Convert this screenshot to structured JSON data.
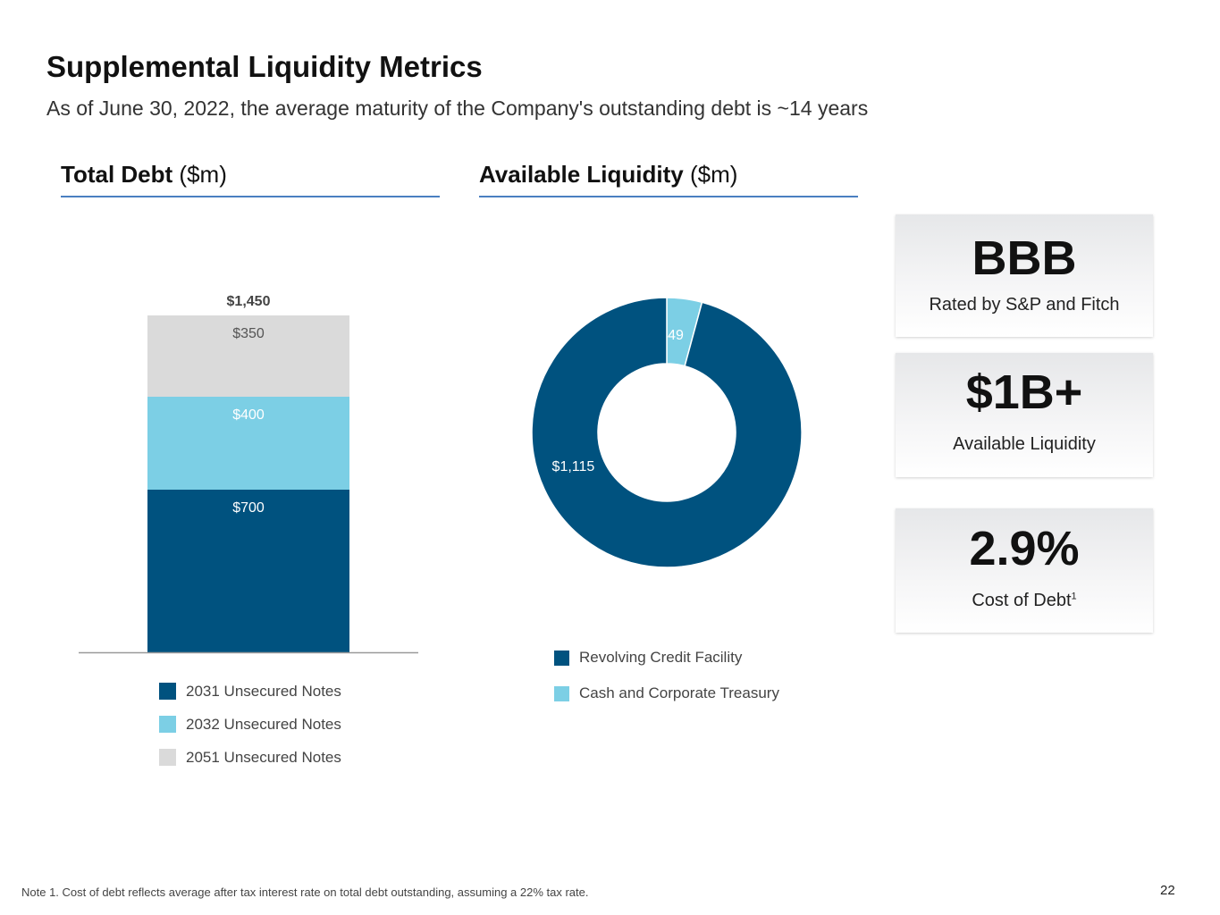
{
  "title": "Supplemental Liquidity Metrics",
  "subtitle": "As of June 30, 2022, the average maturity of the Company's outstanding debt is ~14 years",
  "sections": {
    "total_debt": {
      "heading_bold": "Total Debt",
      "heading_unit": "($m)"
    },
    "available_liquidity": {
      "heading_bold": "Available Liquidity",
      "heading_unit": "($m)"
    }
  },
  "colors": {
    "dark_blue": "#00527f",
    "light_blue": "#7ccfe5",
    "light_gray": "#dadada",
    "rule_blue": "#4a7fc1"
  },
  "chart_data": [
    {
      "type": "bar",
      "stacked": true,
      "title": "Total Debt ($m)",
      "categories": [
        "Total Debt"
      ],
      "total_label": "$1,450",
      "ylim": [
        0,
        1450
      ],
      "series": [
        {
          "name": "2031 Unsecured Notes",
          "values": [
            700
          ],
          "label": "$700",
          "color": "#00527f"
        },
        {
          "name": "2032 Unsecured Notes",
          "values": [
            400
          ],
          "label": "$400",
          "color": "#7ccfe5"
        },
        {
          "name": "2051 Unsecured Notes",
          "values": [
            350
          ],
          "label": "$350",
          "color": "#dadada"
        }
      ]
    },
    {
      "type": "pie",
      "donut": true,
      "title": "Available Liquidity ($m)",
      "slices": [
        {
          "name": "Cash and Corporate Treasury",
          "value": 49,
          "label": "$49",
          "color": "#7ccfe5"
        },
        {
          "name": "Revolving Credit Facility",
          "value": 1115,
          "label": "$1,115",
          "color": "#00527f"
        }
      ],
      "legend": [
        "Revolving Credit Facility",
        "Cash and Corporate Treasury"
      ]
    }
  ],
  "cards": [
    {
      "value": "BBB",
      "label": "Rated by S&P and Fitch"
    },
    {
      "value": "$1B+",
      "label": "Available Liquidity"
    },
    {
      "value": "2.9%",
      "label": "Cost of Debt",
      "sup": "1"
    }
  ],
  "footnote": "Note 1. Cost of debt reflects average after tax interest rate on total debt outstanding, assuming a 22% tax rate.",
  "page_number": "22"
}
